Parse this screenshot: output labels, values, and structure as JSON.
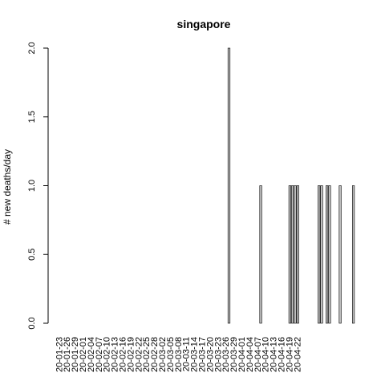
{
  "chart_data": {
    "type": "bar",
    "title": "singapore",
    "xlabel": "",
    "ylabel": "# new deaths/day",
    "ylim": [
      0,
      2
    ],
    "yticks": [
      "0.0",
      "0.5",
      "1.0",
      "1.5",
      "2.0"
    ],
    "start_date": "2020-01-23",
    "x_tick_labels": [
      "20-01-23",
      "20-01-26",
      "20-01-29",
      "20-02-01",
      "20-02-04",
      "20-02-07",
      "20-02-10",
      "20-02-13",
      "20-02-16",
      "20-02-19",
      "20-02-22",
      "20-02-25",
      "20-02-28",
      "20-03-02",
      "20-03-05",
      "20-03-08",
      "20-03-11",
      "20-03-14",
      "20-03-17",
      "20-03-20",
      "20-03-23",
      "20-03-26",
      "20-03-29",
      "20-04-01",
      "20-04-04",
      "20-04-07",
      "20-04-10",
      "20-04-13",
      "20-04-16",
      "20-04-19",
      "20-04-22"
    ],
    "values": [
      0,
      0,
      0,
      0,
      0,
      0,
      0,
      0,
      0,
      0,
      0,
      0,
      0,
      0,
      0,
      0,
      0,
      0,
      0,
      0,
      0,
      0,
      0,
      0,
      0,
      0,
      0,
      0,
      0,
      0,
      0,
      0,
      0,
      0,
      0,
      0,
      0,
      0,
      0,
      0,
      0,
      0,
      0,
      0,
      0,
      0,
      0,
      0,
      0,
      0,
      0,
      0,
      0,
      0,
      0,
      0,
      0,
      0,
      0,
      0,
      0,
      0,
      0,
      0,
      2,
      0,
      0,
      0,
      0,
      0,
      0,
      0,
      0,
      0,
      0,
      0,
      1,
      0,
      0,
      0,
      0,
      0,
      0,
      0,
      0,
      0,
      0,
      1,
      1,
      1,
      1,
      0,
      0,
      0,
      0,
      0,
      0,
      0,
      1,
      1,
      0,
      1,
      1,
      0,
      0,
      0,
      1,
      0,
      0,
      0,
      0,
      1
    ]
  }
}
